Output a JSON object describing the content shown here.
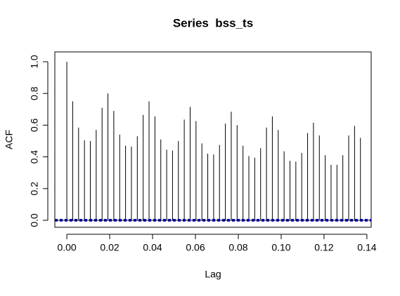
{
  "chart_data": {
    "type": "acf",
    "title": "Series  bss_ts",
    "xlabel": "Lag",
    "ylabel": "ACF",
    "x": [
      0,
      0.00274,
      0.00548,
      0.00822,
      0.01096,
      0.0137,
      0.01644,
      0.01918,
      0.02192,
      0.02466,
      0.0274,
      0.03014,
      0.03288,
      0.03562,
      0.03836,
      0.0411,
      0.04384,
      0.04658,
      0.04932,
      0.05205,
      0.05479,
      0.05753,
      0.06027,
      0.06301,
      0.06575,
      0.06849,
      0.07123,
      0.07397,
      0.07671,
      0.07945,
      0.08219,
      0.08493,
      0.08767,
      0.09041,
      0.09315,
      0.09589,
      0.09863,
      0.10137,
      0.10411,
      0.10685,
      0.10959,
      0.11233,
      0.11507,
      0.11781,
      0.12055,
      0.12329,
      0.12603,
      0.12877,
      0.13151,
      0.13425,
      0.13699
    ],
    "values": [
      1.0,
      0.75,
      0.585,
      0.505,
      0.5,
      0.57,
      0.71,
      0.8,
      0.69,
      0.54,
      0.47,
      0.465,
      0.53,
      0.665,
      0.75,
      0.655,
      0.51,
      0.445,
      0.44,
      0.5,
      0.635,
      0.715,
      0.625,
      0.485,
      0.42,
      0.415,
      0.475,
      0.61,
      0.685,
      0.6,
      0.47,
      0.405,
      0.395,
      0.455,
      0.585,
      0.655,
      0.57,
      0.435,
      0.375,
      0.37,
      0.425,
      0.55,
      0.615,
      0.535,
      0.41,
      0.35,
      0.35,
      0.41,
      0.535,
      0.595,
      0.52
    ],
    "color": "#000000",
    "ci": 0.005,
    "ci_color": "#0000cd",
    "xlim": [
      -0.0056,
      0.142
    ],
    "ylim": [
      -0.044,
      1.062
    ],
    "xticks": [
      {
        "value": 0,
        "label": "0.00"
      },
      {
        "value": 0.02,
        "label": "0.02"
      },
      {
        "value": 0.04,
        "label": "0.04"
      },
      {
        "value": 0.06,
        "label": "0.06"
      },
      {
        "value": 0.08,
        "label": "0.08"
      },
      {
        "value": 0.1,
        "label": "0.10"
      },
      {
        "value": 0.12,
        "label": "0.12"
      },
      {
        "value": 0.14,
        "label": "0.14"
      }
    ],
    "yticks": [
      {
        "value": 0,
        "label": "0.0"
      },
      {
        "value": 0.2,
        "label": "0.2"
      },
      {
        "value": 0.4,
        "label": "0.4"
      },
      {
        "value": 0.6,
        "label": "0.6"
      },
      {
        "value": 0.8,
        "label": "0.8"
      },
      {
        "value": 1,
        "label": "1.0"
      }
    ]
  }
}
